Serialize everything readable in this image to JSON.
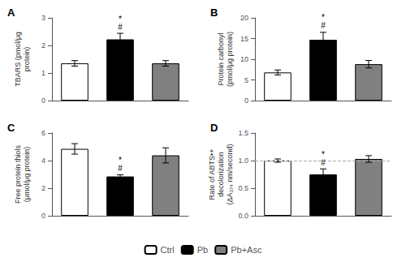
{
  "chart_data": [
    {
      "type": "bar",
      "title": "A",
      "ylabel": "TBARS (pmol/μg\nprotein)",
      "categories": [
        "Ctrl",
        "Pb",
        "Pb+Asc"
      ],
      "values": [
        1.35,
        2.22,
        1.35
      ],
      "errors": [
        0.1,
        0.22,
        0.1
      ],
      "colors": [
        "white",
        "black",
        "#808080"
      ],
      "ylim": [
        0,
        3
      ],
      "yticks": [
        0,
        1,
        2,
        3
      ],
      "grid": false,
      "tick_labels": "y",
      "legend": "bottom",
      "annotations": [
        {
          "text": "#",
          "category": "Pb"
        },
        {
          "text": "*",
          "category": "Pb"
        }
      ]
    },
    {
      "type": "bar",
      "title": "B",
      "ylabel": "Protein carbonyl\n(pmol/μg protein)",
      "categories": [
        "Ctrl",
        "Pb",
        "Pb+Asc"
      ],
      "values": [
        6.8,
        14.7,
        8.8
      ],
      "errors": [
        0.6,
        1.8,
        0.9
      ],
      "colors": [
        "white",
        "black",
        "#808080"
      ],
      "ylim": [
        0,
        20
      ],
      "yticks": [
        0,
        5,
        10,
        15,
        20
      ],
      "grid": false,
      "tick_labels": "y",
      "legend": "bottom",
      "annotations": [
        {
          "text": "#",
          "category": "Pb"
        },
        {
          "text": "*",
          "category": "Pb"
        }
      ]
    },
    {
      "type": "bar",
      "title": "C",
      "ylabel": "Free protein thiols\n(μmol/μg protein)",
      "categories": [
        "Ctrl",
        "Pb",
        "Pb+Asc"
      ],
      "values": [
        4.85,
        2.85,
        4.38
      ],
      "errors": [
        0.38,
        0.12,
        0.55
      ],
      "colors": [
        "white",
        "black",
        "#808080"
      ],
      "ylim": [
        0,
        6
      ],
      "yticks": [
        0,
        2,
        4,
        6
      ],
      "grid": false,
      "tick_labels": "y",
      "legend": "bottom",
      "annotations": [
        {
          "text": "#",
          "category": "Pb"
        },
        {
          "text": "*",
          "category": "Pb"
        }
      ]
    },
    {
      "type": "bar",
      "title": "D",
      "ylabel": "Rate of ABTS•+\ndecolorization\n(ΔA₃₇₄ nm/second)",
      "categories": [
        "Ctrl",
        "Pb",
        "Pb+Asc"
      ],
      "values": [
        1.0,
        0.75,
        1.03
      ],
      "errors": [
        0.03,
        0.1,
        0.06
      ],
      "colors": [
        "white",
        "black",
        "#808080"
      ],
      "ylim": [
        0.0,
        1.5
      ],
      "yticks": [
        {
          "value": 0.0,
          "label": "0.0"
        },
        {
          "value": 0.5,
          "label": "0.5"
        },
        {
          "value": 1.0,
          "label": "1.0"
        },
        {
          "value": 1.5,
          "label": "1.5"
        }
      ],
      "grid": false,
      "tick_labels": "y",
      "legend": "bottom",
      "annotations": [
        {
          "text": "#",
          "category": "Pb"
        },
        {
          "text": "*",
          "category": "Pb"
        }
      ],
      "reference_lines": [
        {
          "y": 1.0,
          "line_style": "dashed"
        }
      ]
    }
  ]
}
